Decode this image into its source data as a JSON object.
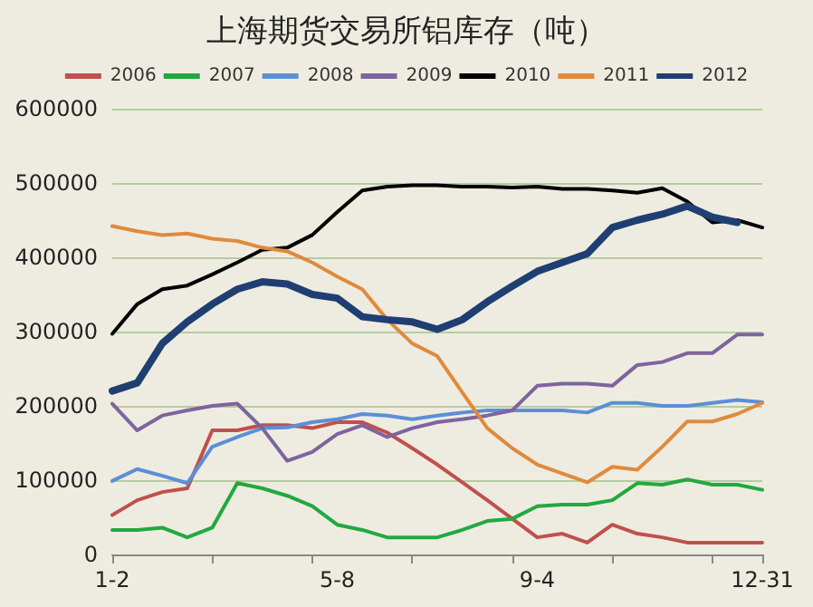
{
  "chart_data": {
    "type": "line",
    "title": "上海期货交易所铝库存（吨）",
    "categories": [
      "1-2",
      null,
      null,
      null,
      null,
      null,
      null,
      null,
      null,
      "5-8",
      null,
      null,
      null,
      null,
      null,
      null,
      null,
      "9-4",
      null,
      null,
      null,
      null,
      null,
      null,
      null,
      null,
      "12-31"
    ],
    "series": [
      {
        "name": "2006",
        "color": "#c0504d",
        "values": [
          53000,
          73000,
          84000,
          89000,
          167000,
          167000,
          174000,
          174000,
          170000,
          178000,
          178000,
          164000,
          143000,
          121000,
          97000,
          73000,
          48000,
          23000,
          28000,
          16000,
          40000,
          28000,
          23000,
          16000,
          16000,
          16000,
          16000
        ]
      },
      {
        "name": "2007",
        "color": "#21a93f",
        "values": [
          33000,
          33000,
          36000,
          23000,
          36000,
          96000,
          89000,
          79000,
          65000,
          40000,
          33000,
          23000,
          23000,
          23000,
          33000,
          45000,
          48000,
          65000,
          67000,
          67000,
          73000,
          96000,
          94000,
          101000,
          94000,
          94000,
          87000
        ]
      },
      {
        "name": "2008",
        "color": "#5b8fd6",
        "values": [
          99000,
          115000,
          106000,
          96000,
          145000,
          158000,
          170000,
          171000,
          178000,
          182000,
          189000,
          187000,
          182000,
          187000,
          191000,
          194000,
          194000,
          194000,
          194000,
          191000,
          204000,
          204000,
          200000,
          200000,
          204000,
          208000,
          205000
        ]
      },
      {
        "name": "2009",
        "color": "#7e649e",
        "values": [
          203000,
          167000,
          187000,
          194000,
          200000,
          203000,
          170000,
          126000,
          138000,
          162000,
          174000,
          158000,
          170000,
          178000,
          182000,
          187000,
          194000,
          227000,
          230000,
          230000,
          227000,
          255000,
          259000,
          271000,
          271000,
          296000,
          296000
        ]
      },
      {
        "name": "2010",
        "color": "#000000",
        "values": [
          297000,
          337000,
          357000,
          362000,
          377000,
          393000,
          410000,
          413000,
          430000,
          461000,
          490000,
          495000,
          497000,
          497000,
          495000,
          495000,
          494000,
          495000,
          492000,
          492000,
          490000,
          487000,
          493000,
          475000,
          447000,
          450000,
          440000
        ]
      },
      {
        "name": "2011",
        "color": "#e08a3c",
        "values": [
          442000,
          435000,
          430000,
          432000,
          425000,
          422000,
          413000,
          408000,
          393000,
          374000,
          357000,
          316000,
          284000,
          267000,
          218000,
          170000,
          143000,
          121000,
          109000,
          97000,
          118000,
          114000,
          145000,
          179000,
          179000,
          189000,
          204000
        ]
      },
      {
        "name": "2012",
        "color": "#1f3f73",
        "values": [
          220000,
          231000,
          284000,
          313000,
          337000,
          357000,
          367000,
          364000,
          350000,
          345000,
          320000,
          316000,
          313000,
          303000,
          316000,
          340000,
          361000,
          381000,
          393000,
          405000,
          440000,
          450000,
          458000,
          469000,
          454000,
          447000,
          null
        ]
      }
    ],
    "ylim": [
      0,
      600000
    ],
    "yticks": [
      0,
      100000,
      200000,
      300000,
      400000,
      500000,
      600000
    ],
    "grid": "y",
    "legend": "top",
    "marker": "none",
    "line_style": "solid"
  }
}
